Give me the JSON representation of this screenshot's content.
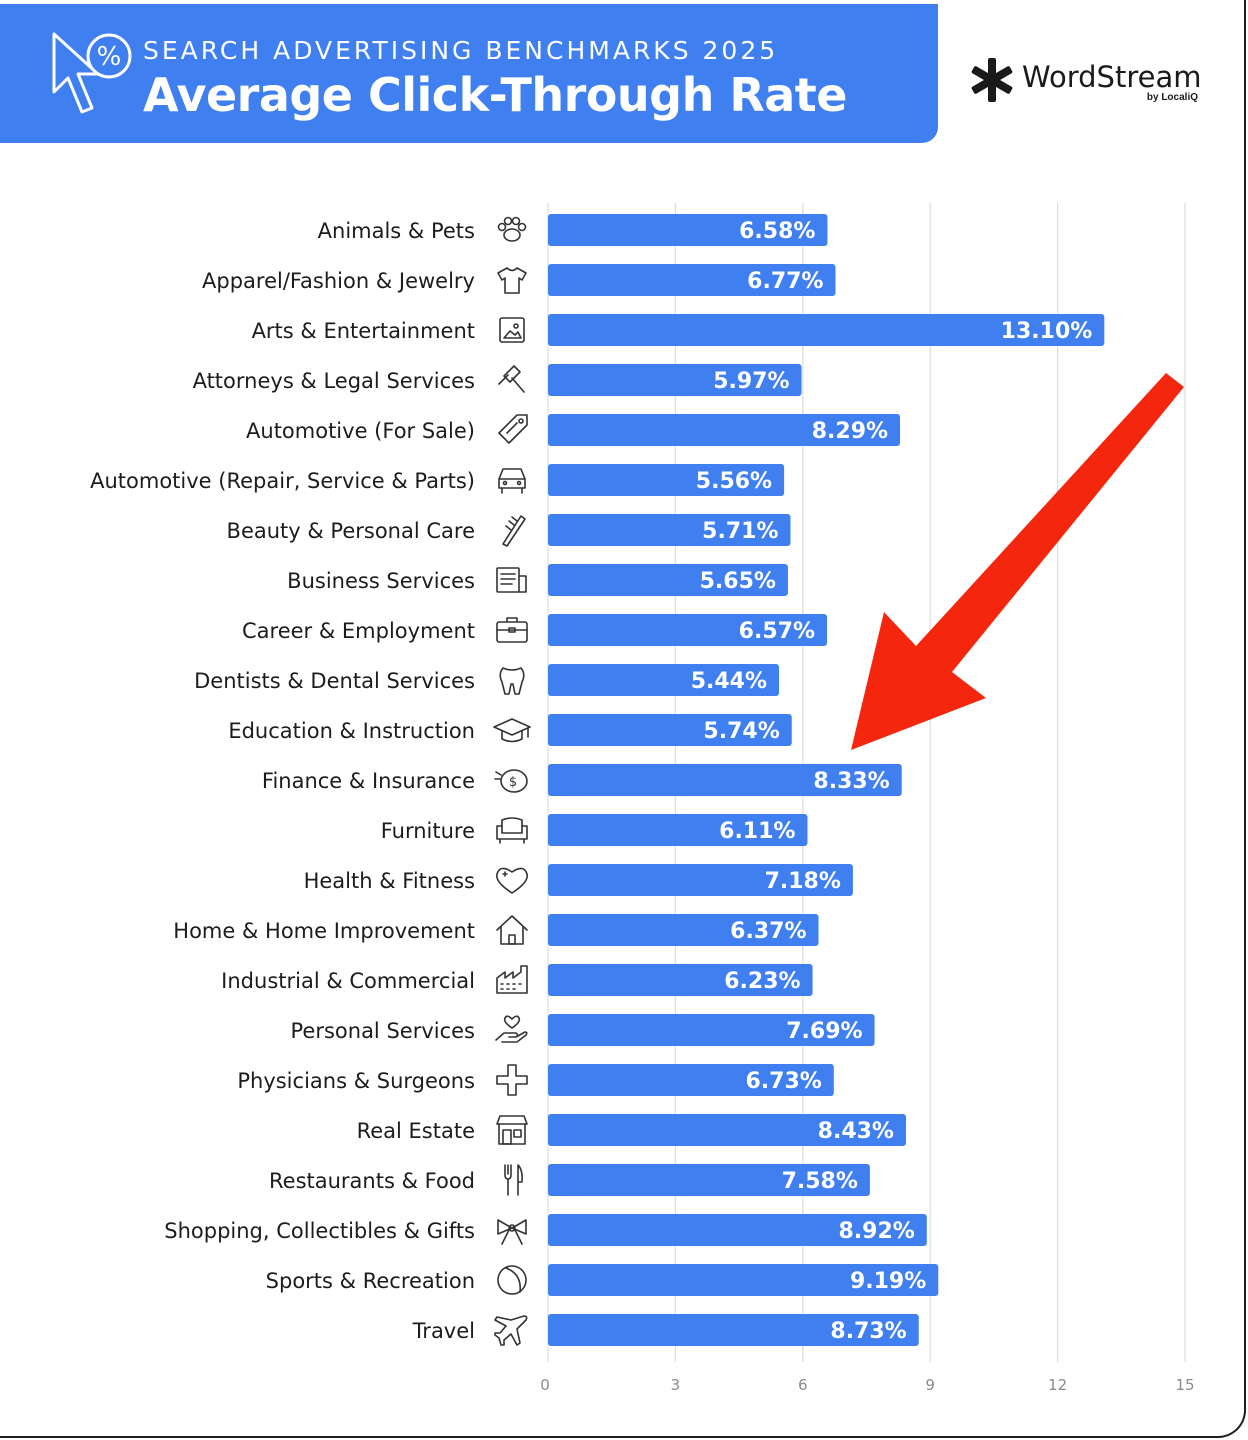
{
  "header": {
    "subtitle": "SEARCH ADVERTISING BENCHMARKS 2025",
    "title": "Average Click-Through Rate"
  },
  "brand": {
    "name": "WordStream",
    "byline": "by LocaliQ"
  },
  "colors": {
    "accent": "#3f7ff0",
    "bar": "#3f7ff0",
    "arrow": "#f4260e",
    "grid": "#dcdcdc"
  },
  "chart_data": {
    "type": "bar",
    "orientation": "horizontal",
    "categories": [
      "Animals & Pets",
      "Apparel/Fashion & Jewelry",
      "Arts & Entertainment",
      "Attorneys & Legal Services",
      "Automotive (For Sale)",
      "Automotive (Repair, Service & Parts)",
      "Beauty & Personal Care",
      "Business Services",
      "Career & Employment",
      "Dentists & Dental Services",
      "Education & Instruction",
      "Finance & Insurance",
      "Furniture",
      "Health & Fitness",
      "Home & Home Improvement",
      "Industrial & Commercial",
      "Personal Services",
      "Physicians & Surgeons",
      "Real Estate",
      "Restaurants & Food",
      "Shopping, Collectibles & Gifts",
      "Sports & Recreation",
      "Travel"
    ],
    "values": [
      6.58,
      6.77,
      13.1,
      5.97,
      8.29,
      5.56,
      5.71,
      5.65,
      6.57,
      5.44,
      5.74,
      8.33,
      6.11,
      7.18,
      6.37,
      6.23,
      7.69,
      6.73,
      8.43,
      7.58,
      8.92,
      9.19,
      8.73
    ],
    "value_labels": [
      "6.58%",
      "6.77%",
      "13.10%",
      "5.97%",
      "8.29%",
      "5.56%",
      "5.71%",
      "5.65%",
      "6.57%",
      "5.44%",
      "5.74%",
      "8.33%",
      "6.11%",
      "7.18%",
      "6.37%",
      "6.23%",
      "7.69%",
      "6.73%",
      "8.43%",
      "7.58%",
      "8.92%",
      "9.19%",
      "8.73%"
    ],
    "icons": [
      "paw-icon",
      "tshirt-icon",
      "picture-icon",
      "gavel-icon",
      "price-tag-icon",
      "car-icon",
      "comb-icon",
      "document-icon",
      "briefcase-icon",
      "tooth-icon",
      "graduation-cap-icon",
      "piggy-bank-icon",
      "armchair-icon",
      "heart-icon",
      "house-icon",
      "factory-icon",
      "hand-heart-icon",
      "medical-cross-icon",
      "storefront-icon",
      "fork-knife-icon",
      "gift-bow-icon",
      "ball-icon",
      "airplane-icon"
    ],
    "xticks": [
      "0",
      "3",
      "6",
      "9",
      "12",
      "15"
    ],
    "xlim": [
      0,
      15
    ],
    "grid": true,
    "xlabel": "",
    "ylabel": "",
    "annotation": "red-arrow-pointing-to-finance-and-insurance"
  }
}
